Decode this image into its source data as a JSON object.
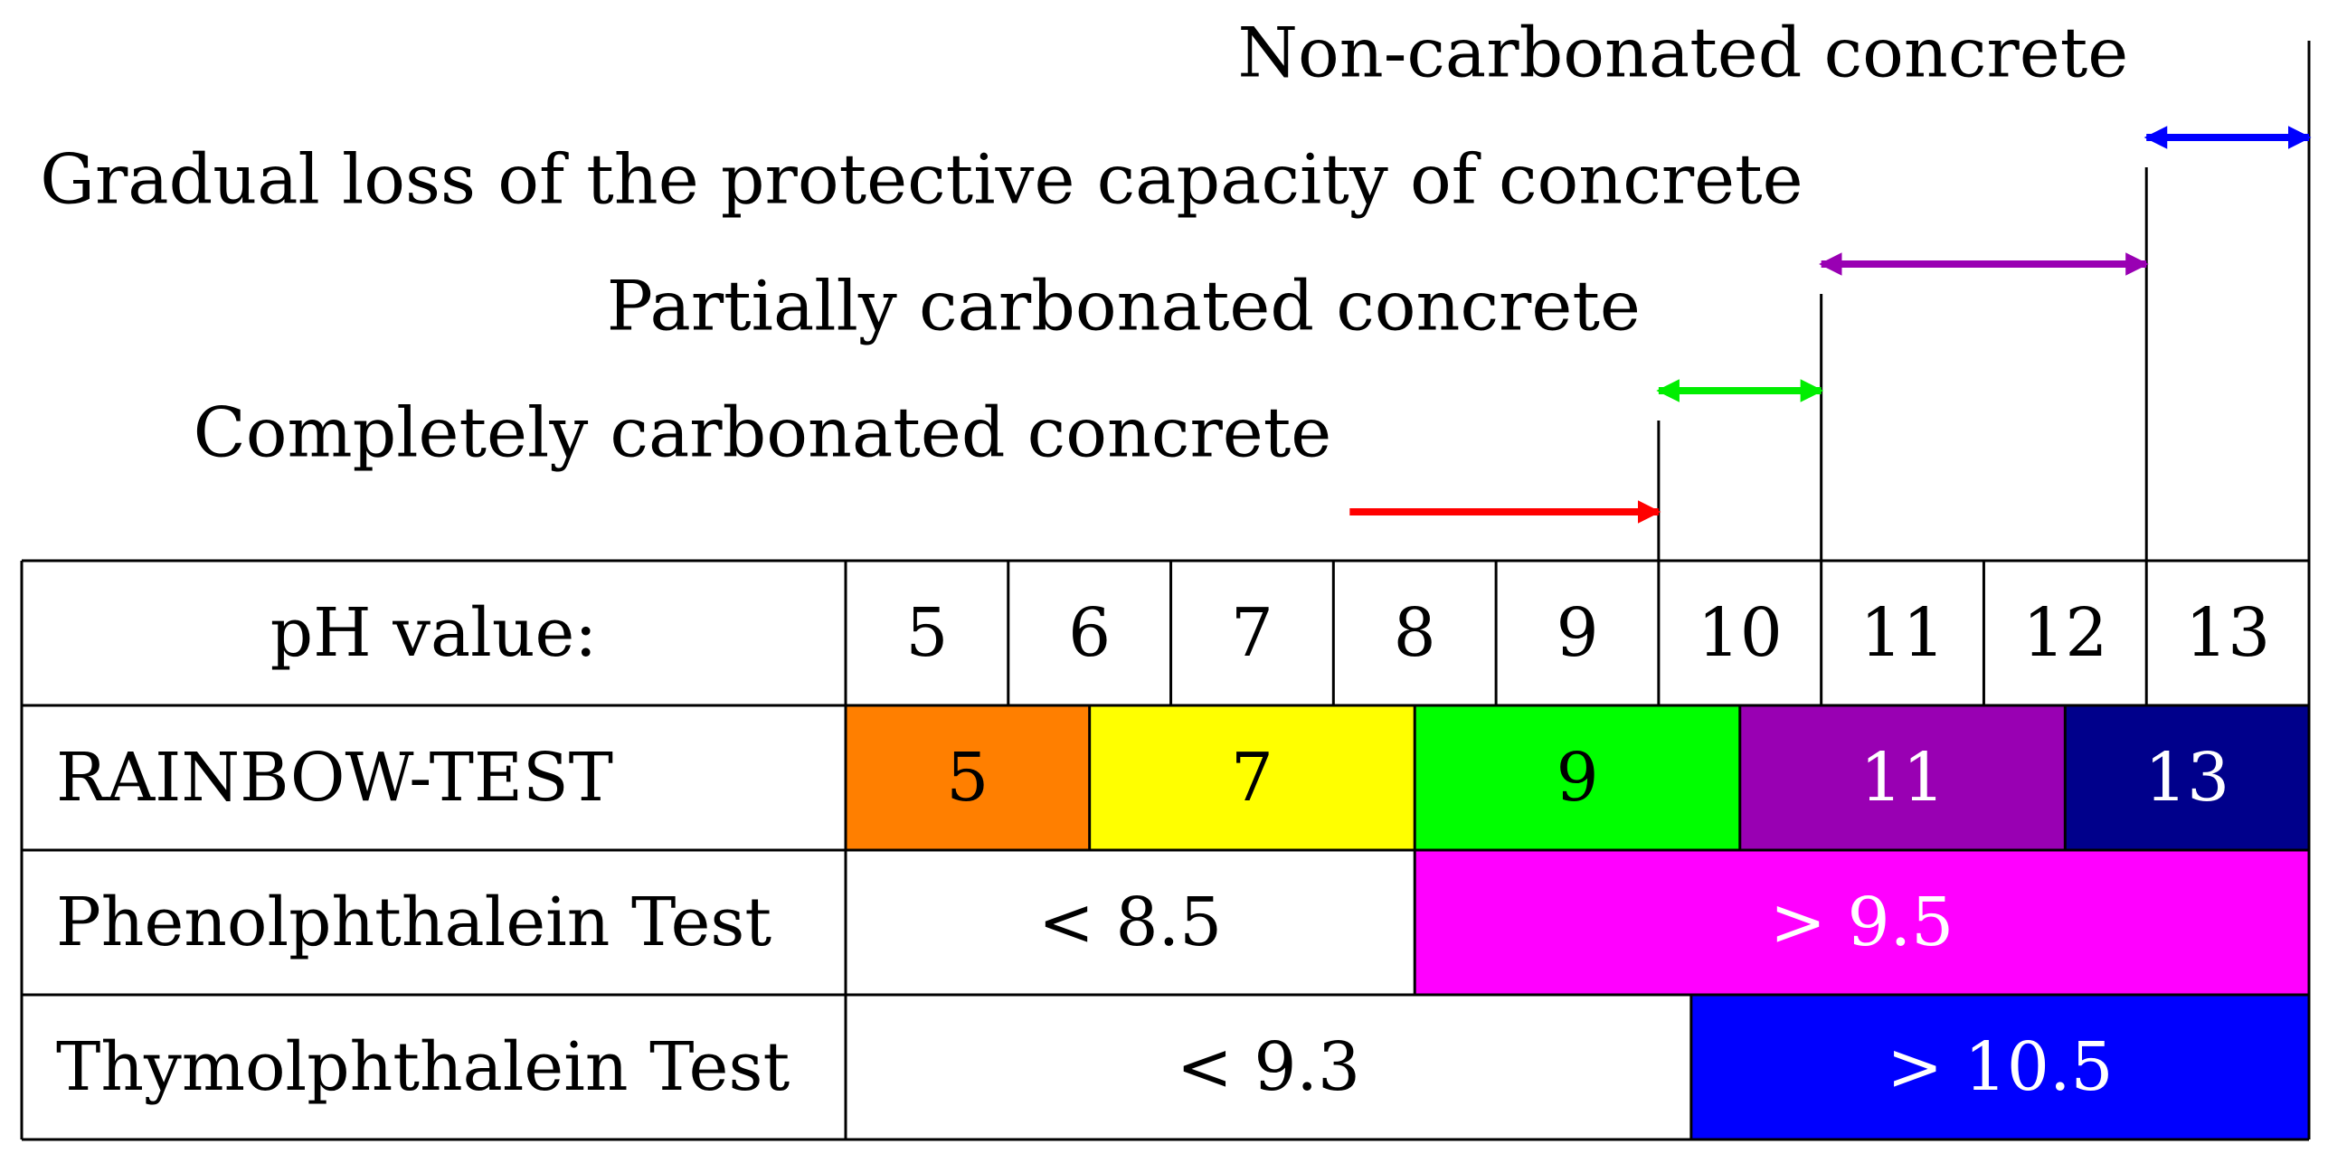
{
  "zones": [
    {
      "label": "Non-carbonated concrete",
      "color": "#0000ff",
      "from_ph": 12.5,
      "to_ph": 13.5
    },
    {
      "label": "Gradual loss of the protective capacity of concrete",
      "color": "#9900b3",
      "from_ph": 10.5,
      "to_ph": 12.5
    },
    {
      "label": "Partially carbonated concrete",
      "color": "#00ee00",
      "from_ph": 9.5,
      "to_ph": 10.5
    },
    {
      "label": "Completely carbonated concrete",
      "color": "#ff0000",
      "from_ph": 7.6,
      "to_ph": 9.5,
      "open_left": true
    }
  ],
  "table": {
    "ph_row": {
      "label": "pH value:",
      "values": [
        "5",
        "6",
        "7",
        "8",
        "9",
        "10",
        "11",
        "12",
        "13"
      ]
    },
    "rows": [
      {
        "label": "RAINBOW-TEST",
        "segments": [
          {
            "text": "5",
            "color": "#ff7f00",
            "text_color": "#000000",
            "from_ph": 4.5,
            "to_ph": 6.0
          },
          {
            "text": "7",
            "color": "#ffff00",
            "text_color": "#000000",
            "from_ph": 6.0,
            "to_ph": 8.0
          },
          {
            "text": "9",
            "color": "#00ff00",
            "text_color": "#000000",
            "from_ph": 8.0,
            "to_ph": 10.0
          },
          {
            "text": "11",
            "color": "#9900b3",
            "text_color": "#ffffff",
            "from_ph": 10.0,
            "to_ph": 12.0
          },
          {
            "text": "13",
            "color": "#00008b",
            "text_color": "#ffffff",
            "from_ph": 12.0,
            "to_ph": 13.5
          }
        ]
      },
      {
        "label": "Phenolphthalein Test",
        "segments": [
          {
            "text": "< 8.5",
            "color": "#ffffff",
            "text_color": "#000000",
            "from_ph": 4.5,
            "to_ph": 8.0
          },
          {
            "text": "> 9.5",
            "color": "#ff00ff",
            "text_color": "#ffffff",
            "from_ph": 8.0,
            "to_ph": 13.5
          }
        ]
      },
      {
        "label": "Thymolphthalein Test",
        "segments": [
          {
            "text": "< 9.3",
            "color": "#ffffff",
            "text_color": "#000000",
            "from_ph": 4.5,
            "to_ph": 9.7
          },
          {
            "text": "> 10.5",
            "color": "#0000ff",
            "text_color": "#ffffff",
            "from_ph": 9.7,
            "to_ph": 13.5
          }
        ]
      }
    ]
  }
}
